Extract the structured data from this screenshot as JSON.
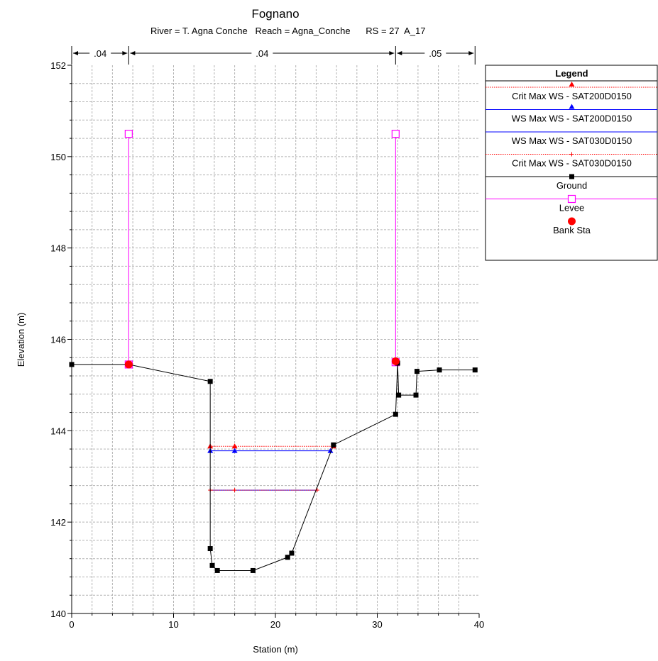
{
  "chart_data": {
    "type": "line",
    "title": "Fognano",
    "subtitle": "River = T. Agna Conche   Reach = Agna_Conche      RS = 27  A_17",
    "xlabel": "Station (m)",
    "ylabel": "Elevation (m)",
    "xlim": [
      0,
      40
    ],
    "ylim": [
      140,
      152
    ],
    "x_ticks": [
      "0",
      "10",
      "20",
      "30",
      "40"
    ],
    "y_ticks": [
      "140",
      "142",
      "144",
      "146",
      "148",
      "150",
      "152"
    ],
    "grid": true,
    "legend_position": "right",
    "mannings": [
      {
        "label": ".04",
        "from": 0,
        "to": 5.6
      },
      {
        "label": ".04",
        "from": 5.6,
        "to": 31.8
      },
      {
        "label": ".05",
        "from": 31.8,
        "to": 39.6
      }
    ],
    "legend": {
      "title": "Legend",
      "entries": [
        "Crit Max WS - SAT200D0150",
        "WS Max WS - SAT200D0150",
        "WS Max WS - SAT030D0150",
        "Crit Max WS - SAT030D0150",
        "Ground",
        "Levee",
        "Bank Sta"
      ]
    },
    "series": [
      {
        "name": "Crit Max WS - SAT200D0150",
        "color": "#ff0000",
        "marker": "triangle",
        "dash": true,
        "points": [
          [
            13.6,
            143.66
          ],
          [
            16.0,
            143.66
          ],
          [
            25.7,
            143.66
          ]
        ]
      },
      {
        "name": "WS Max WS - SAT200D0150",
        "color": "#0000ff",
        "marker": "triangle",
        "dash": false,
        "points": [
          [
            13.6,
            143.56
          ],
          [
            16.0,
            143.56
          ],
          [
            25.4,
            143.56
          ]
        ]
      },
      {
        "name": "WS Max WS - SAT030D0150",
        "color": "#0000ff",
        "marker": "none",
        "dash": false,
        "points": [
          [
            13.6,
            142.7
          ],
          [
            24.1,
            142.7
          ]
        ]
      },
      {
        "name": "Crit Max WS - SAT030D0150",
        "color": "#ff0000",
        "marker": "plus",
        "dash": true,
        "points": [
          [
            13.6,
            142.7
          ],
          [
            16.0,
            142.7
          ],
          [
            24.1,
            142.7
          ]
        ]
      },
      {
        "name": "Ground",
        "color": "#000000",
        "marker": "square",
        "dash": false,
        "points": [
          [
            0,
            145.45
          ],
          [
            5.6,
            145.45
          ],
          [
            13.6,
            145.08
          ],
          [
            13.6,
            141.42
          ],
          [
            13.8,
            141.05
          ],
          [
            14.3,
            140.94
          ],
          [
            17.8,
            140.94
          ],
          [
            21.2,
            141.23
          ],
          [
            21.6,
            141.32
          ],
          [
            25.7,
            143.69
          ],
          [
            31.8,
            144.36
          ],
          [
            32.0,
            145.48
          ],
          [
            32.1,
            144.78
          ],
          [
            33.8,
            144.78
          ],
          [
            33.9,
            145.3
          ],
          [
            36.1,
            145.33
          ],
          [
            39.6,
            145.33
          ]
        ]
      },
      {
        "name": "Levee",
        "color": "#ff00ff",
        "marker": "open-square",
        "dash": false,
        "segments": [
          [
            [
              5.6,
              145.45
            ],
            [
              5.6,
              150.5
            ]
          ],
          [
            [
              31.8,
              145.5
            ],
            [
              31.8,
              150.5
            ]
          ]
        ]
      },
      {
        "name": "Bank Sta",
        "color": "#ff0000",
        "marker": "circle",
        "dash": false,
        "points": [
          [
            5.6,
            145.45
          ],
          [
            31.8,
            145.52
          ]
        ]
      }
    ]
  }
}
